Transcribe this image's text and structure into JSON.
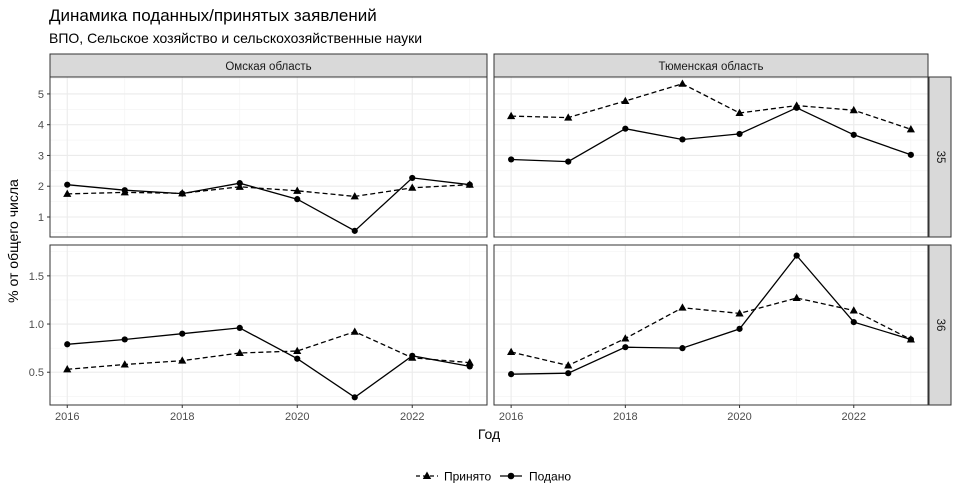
{
  "chart_data": {
    "type": "line",
    "title": "Динамика поданных/принятых заявлений",
    "subtitle": "ВПО, Сельское хозяйство и сельскохозяйственные науки",
    "xlabel": "Год",
    "ylabel": "% от общего числа",
    "x": [
      2016,
      2017,
      2018,
      2019,
      2020,
      2021,
      2022,
      2023
    ],
    "xlim": [
      2015.7,
      2023.3
    ],
    "x_ticks": [
      2016,
      2018,
      2020,
      2022
    ],
    "grid": true,
    "legend_position": "bottom",
    "legend": [
      {
        "name": "Принято",
        "marker": "triangle",
        "line": "dashed"
      },
      {
        "name": "Подано",
        "marker": "circle",
        "line": "solid"
      }
    ],
    "col_facets": [
      "Омская область",
      "Тюменская область"
    ],
    "row_facets": [
      {
        "label": "35",
        "ylim": [
          0.35,
          5.55
        ],
        "y_ticks": [
          1,
          2,
          3,
          4,
          5
        ],
        "y_tick_labels": [
          "1",
          "2",
          "3",
          "4",
          "5"
        ]
      },
      {
        "label": "36",
        "ylim": [
          0.16,
          1.82
        ],
        "y_ticks": [
          0.5,
          1.0,
          1.5
        ],
        "y_tick_labels": [
          "0.5",
          "1.0",
          "1.5"
        ]
      }
    ],
    "panels": [
      {
        "col": "Омская область",
        "row": "35",
        "series": [
          {
            "name": "Принято",
            "values": [
              1.75,
              1.8,
              1.77,
              1.98,
              1.85,
              1.67,
              1.95,
              2.05
            ]
          },
          {
            "name": "Подано",
            "values": [
              2.05,
              1.87,
              1.76,
              2.1,
              1.58,
              0.55,
              2.27,
              2.05
            ]
          }
        ]
      },
      {
        "col": "Тюменская область",
        "row": "35",
        "series": [
          {
            "name": "Принято",
            "values": [
              4.28,
              4.23,
              4.77,
              5.33,
              4.38,
              4.62,
              4.47,
              3.85
            ]
          },
          {
            "name": "Подано",
            "values": [
              2.87,
              2.8,
              3.87,
              3.52,
              3.7,
              4.55,
              3.67,
              3.02
            ]
          }
        ]
      },
      {
        "col": "Омская область",
        "row": "36",
        "series": [
          {
            "name": "Принято",
            "values": [
              0.53,
              0.58,
              0.62,
              0.7,
              0.72,
              0.92,
              0.65,
              0.6
            ]
          },
          {
            "name": "Подано",
            "values": [
              0.79,
              0.84,
              0.9,
              0.96,
              0.64,
              0.24,
              0.67,
              0.56
            ]
          }
        ]
      },
      {
        "col": "Тюменская область",
        "row": "36",
        "series": [
          {
            "name": "Принято",
            "values": [
              0.71,
              0.57,
              0.85,
              1.17,
              1.11,
              1.27,
              1.14,
              0.84
            ]
          },
          {
            "name": "Подано",
            "values": [
              0.48,
              0.49,
              0.76,
              0.75,
              0.95,
              1.71,
              1.02,
              0.84
            ]
          }
        ]
      }
    ]
  }
}
